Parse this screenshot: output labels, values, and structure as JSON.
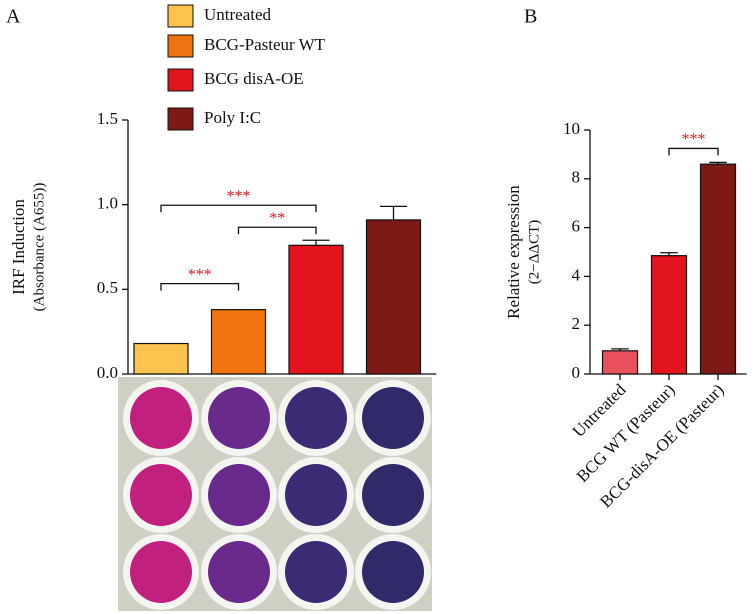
{
  "chart_data": [
    {
      "type": "bar",
      "panel": "A",
      "y_label": [
        "IRF Induction",
        "(Absorbance (A655))"
      ],
      "categories": [
        "Untreated",
        "BCG-Pasteur WT",
        "BCG disA-OE",
        "Poly I:C"
      ],
      "colors": [
        "#fcc44f",
        "#ef7410",
        "#e3141e",
        "#7d1a15"
      ],
      "values": [
        0.18,
        0.38,
        0.76,
        0.91
      ],
      "errors": [
        0,
        0,
        0.03,
        0.08
      ],
      "ylim": [
        0,
        1.5
      ],
      "yticks": [
        {
          "value": 0,
          "label": "0.0"
        },
        0.5,
        {
          "value": 1,
          "label": "1.0"
        },
        1.5
      ],
      "annotations": [
        "***",
        "**",
        "***"
      ]
    },
    {
      "type": "bar",
      "panel": "B",
      "y_label": [
        "Relative expression",
        "(2−ΔΔCT)"
      ],
      "categories": [
        "Untreated",
        "BCG WT (Pasteur)",
        "BCG-disA-OE (Pasteur)"
      ],
      "colors": [
        "#e8505b",
        "#e3141e",
        "#7d1a15"
      ],
      "values": [
        0.95,
        4.85,
        8.6
      ],
      "errors": [
        0.08,
        0.12,
        0.07
      ],
      "ylim": [
        0,
        10
      ],
      "yticks": [
        0,
        2,
        4,
        6,
        8,
        10
      ],
      "annotations": [
        "***"
      ]
    }
  ]
}
